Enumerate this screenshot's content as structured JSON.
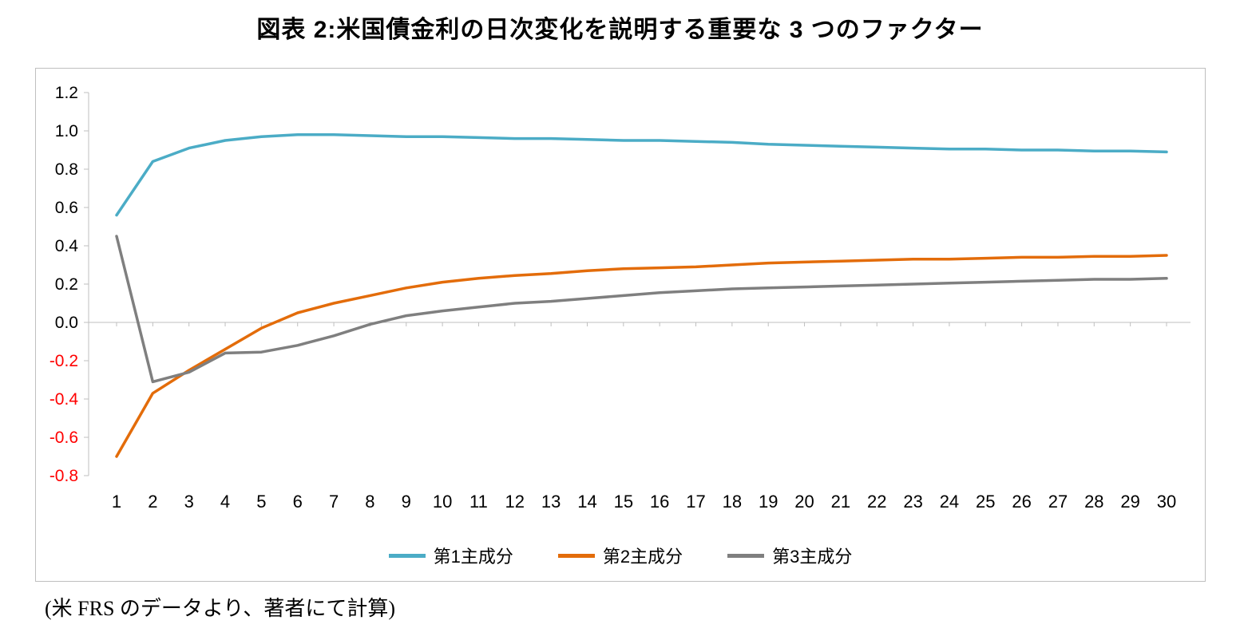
{
  "title": "図表 2:米国債金利の日次変化を説明する重要な 3 つのファクター",
  "caption": "(米 FRS のデータより、著者にて計算)",
  "chart_data": {
    "type": "line",
    "title": "図表 2:米国債金利の日次変化を説明する重要な 3 つのファクター",
    "xlabel": "",
    "ylabel": "",
    "ylim": [
      -0.8,
      1.2
    ],
    "yticks": [
      1.2,
      1.0,
      0.8,
      0.6,
      0.4,
      0.2,
      0.0,
      -0.2,
      -0.4,
      -0.6,
      -0.8
    ],
    "x": [
      1,
      2,
      3,
      4,
      5,
      6,
      7,
      8,
      9,
      10,
      11,
      12,
      13,
      14,
      15,
      16,
      17,
      18,
      19,
      20,
      21,
      22,
      23,
      24,
      25,
      26,
      27,
      28,
      29,
      30
    ],
    "grid": false,
    "legend_position": "bottom",
    "axis_color": "#bfbfbf",
    "tick_color": "#000000",
    "negative_tick_color": "#ff0000",
    "series": [
      {
        "name": "第1主成分",
        "color": "#4bacc6",
        "values": [
          0.56,
          0.84,
          0.91,
          0.95,
          0.97,
          0.98,
          0.98,
          0.975,
          0.97,
          0.97,
          0.965,
          0.96,
          0.96,
          0.955,
          0.95,
          0.95,
          0.945,
          0.94,
          0.93,
          0.925,
          0.92,
          0.915,
          0.91,
          0.905,
          0.905,
          0.9,
          0.9,
          0.895,
          0.895,
          0.89
        ]
      },
      {
        "name": "第2主成分",
        "color": "#e36c0a",
        "values": [
          -0.7,
          -0.37,
          -0.25,
          -0.14,
          -0.03,
          0.05,
          0.1,
          0.14,
          0.18,
          0.21,
          0.23,
          0.245,
          0.255,
          0.27,
          0.28,
          0.285,
          0.29,
          0.3,
          0.31,
          0.315,
          0.32,
          0.325,
          0.33,
          0.33,
          0.335,
          0.34,
          0.34,
          0.345,
          0.345,
          0.35
        ]
      },
      {
        "name": "第3主成分",
        "color": "#7f7f7f",
        "values": [
          0.45,
          -0.31,
          -0.26,
          -0.16,
          -0.155,
          -0.12,
          -0.07,
          -0.01,
          0.035,
          0.06,
          0.08,
          0.1,
          0.11,
          0.125,
          0.14,
          0.155,
          0.165,
          0.175,
          0.18,
          0.185,
          0.19,
          0.195,
          0.2,
          0.205,
          0.21,
          0.215,
          0.22,
          0.225,
          0.225,
          0.23
        ]
      }
    ]
  }
}
